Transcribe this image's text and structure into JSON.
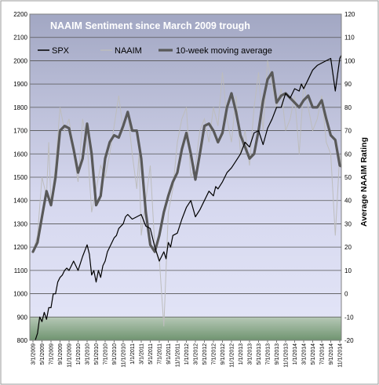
{
  "chart_data": {
    "type": "line",
    "title": "NAAIM Sentiment since March 2009 trough",
    "ylabel_left": "",
    "ylabel_right": "Average NAAIM Rating",
    "xlabel": "",
    "y_left_range": [
      800,
      2200
    ],
    "y_right_range": [
      -20,
      120
    ],
    "y_left_ticks": [
      "800",
      "900",
      "1000",
      "1100",
      "1200",
      "1300",
      "1400",
      "1500",
      "1600",
      "1700",
      "1800",
      "1900",
      "2000",
      "2100",
      "2200"
    ],
    "y_right_ticks": [
      "-20",
      "-10",
      "0",
      "10",
      "20",
      "30",
      "40",
      "50",
      "60",
      "70",
      "80",
      "90",
      "100",
      "110",
      "120"
    ],
    "x_tick_labels": [
      "3/1/2009",
      "5/1/2009",
      "7/1/2009",
      "9/1/2009",
      "11/1/2009",
      "1/1/2010",
      "3/1/2010",
      "5/1/2010",
      "7/1/2010",
      "9/1/2010",
      "11/1/2010",
      "1/1/2011",
      "3/1/2011",
      "5/1/2011",
      "7/1/2011",
      "9/1/2011",
      "11/1/2011",
      "1/1/2012",
      "3/1/2012",
      "5/1/2012",
      "7/1/2012",
      "9/1/2012",
      "11/1/2012",
      "1/1/2013",
      "3/1/2013",
      "5/1/2013",
      "7/1/2013",
      "9/1/2013",
      "11/1/2013",
      "1/1/2014",
      "3/1/2014",
      "5/1/2014",
      "7/1/2014",
      "9/1/2014",
      "11/1/2014"
    ],
    "legend": {
      "placement": "top",
      "entries": [
        "SPX",
        "NAAIM",
        "10-week moving average"
      ]
    },
    "colors": {
      "spx": "#000000",
      "naaim": "#bdbdbd",
      "moving_average": "#595959",
      "band_bottom": "#7fa07f"
    },
    "grid": true,
    "series": [
      {
        "name": "SPX",
        "axis": "left",
        "x_months": [
          0,
          0.5,
          1,
          1.5,
          2,
          2.5,
          3,
          3.5,
          4,
          4.5,
          5,
          5.5,
          6,
          6.5,
          7,
          7.5,
          8,
          9,
          10,
          11,
          12,
          12.5,
          13,
          13.5,
          14,
          14.5,
          15,
          15.5,
          16,
          16.5,
          17,
          18,
          18.5,
          19,
          20,
          20.5,
          21,
          22,
          23,
          24,
          25,
          26,
          27,
          28,
          29,
          29.5,
          30,
          30.5,
          31,
          32,
          33,
          34,
          35,
          36,
          37,
          38,
          39,
          40,
          40.5,
          41,
          42,
          43,
          44,
          45,
          46,
          47,
          48,
          49,
          50,
          51,
          52,
          53,
          54,
          55,
          56,
          57,
          58,
          59,
          59.5,
          60,
          61,
          62,
          63,
          64,
          65,
          66,
          67,
          68,
          69,
          70
        ],
        "values": [
          757,
          800,
          830,
          900,
          880,
          920,
          890,
          940,
          940,
          1000,
          1000,
          1050,
          1070,
          1080,
          1100,
          1110,
          1100,
          1140,
          1100,
          1160,
          1210,
          1170,
          1080,
          1100,
          1050,
          1100,
          1070,
          1120,
          1140,
          1180,
          1200,
          1240,
          1250,
          1280,
          1300,
          1330,
          1340,
          1320,
          1330,
          1340,
          1290,
          1280,
          1200,
          1140,
          1180,
          1150,
          1220,
          1200,
          1250,
          1260,
          1320,
          1370,
          1400,
          1330,
          1360,
          1400,
          1440,
          1420,
          1460,
          1450,
          1480,
          1520,
          1540,
          1570,
          1600,
          1650,
          1630,
          1690,
          1700,
          1640,
          1710,
          1750,
          1800,
          1800,
          1860,
          1840,
          1880,
          1870,
          1900,
          1880,
          1920,
          1960,
          1980,
          1990,
          2000,
          2010,
          1870,
          2010,
          2050,
          2070
        ]
      },
      {
        "name": "NAAIM",
        "axis": "right",
        "x_months": [
          0,
          1,
          2,
          3,
          3.5,
          4,
          5,
          6,
          7,
          8,
          9,
          10,
          11,
          12,
          13,
          14,
          15,
          16,
          17,
          18,
          19,
          20,
          21,
          22,
          23,
          23.5,
          24,
          25,
          26,
          27,
          28,
          29,
          30,
          31,
          32,
          33,
          34,
          35,
          36,
          37,
          38,
          39,
          40,
          41,
          42,
          43,
          44,
          45,
          46,
          47,
          48,
          49,
          50,
          51,
          52,
          53,
          54,
          55,
          56,
          57,
          58,
          59,
          60,
          61,
          62,
          63,
          64,
          65,
          66,
          67,
          68,
          69,
          70
        ],
        "values": [
          18,
          25,
          50,
          42,
          65,
          38,
          55,
          80,
          70,
          75,
          60,
          48,
          75,
          65,
          35,
          45,
          55,
          50,
          60,
          72,
          85,
          70,
          78,
          60,
          45,
          60,
          25,
          40,
          55,
          20,
          15,
          -14,
          35,
          45,
          65,
          75,
          80,
          50,
          55,
          70,
          75,
          65,
          80,
          72,
          95,
          75,
          65,
          85,
          60,
          70,
          55,
          80,
          95,
          70,
          100,
          90,
          80,
          88,
          70,
          75,
          85,
          60,
          90,
          80,
          70,
          75,
          85,
          65,
          60,
          25,
          60,
          45,
          62
        ]
      },
      {
        "name": "10-week moving average",
        "axis": "right",
        "x_months": [
          0,
          1,
          2,
          3,
          4,
          5,
          6,
          7,
          8,
          9,
          10,
          11,
          12,
          13,
          14,
          15,
          16,
          17,
          18,
          19,
          20,
          21,
          22,
          23,
          24,
          25,
          26,
          27,
          28,
          29,
          30,
          31,
          32,
          33,
          34,
          35,
          36,
          37,
          38,
          39,
          40,
          41,
          42,
          43,
          44,
          45,
          46,
          47,
          48,
          49,
          50,
          51,
          52,
          53,
          54,
          55,
          56,
          57,
          58,
          59,
          60,
          61,
          62,
          63,
          64,
          65,
          66,
          67,
          68,
          69,
          70
        ],
        "values": [
          18,
          22,
          33,
          44,
          38,
          50,
          70,
          72,
          71,
          62,
          52,
          58,
          73,
          60,
          38,
          42,
          58,
          65,
          68,
          67,
          72,
          78,
          70,
          70,
          58,
          35,
          21,
          18,
          25,
          35,
          42,
          48,
          52,
          62,
          69,
          60,
          49,
          60,
          72,
          73,
          70,
          65,
          69,
          80,
          86,
          78,
          68,
          63,
          58,
          60,
          70,
          83,
          92,
          95,
          82,
          85,
          86,
          84,
          82,
          80,
          83,
          85,
          80,
          80,
          83,
          75,
          68,
          66,
          55,
          54,
          56
        ]
      }
    ]
  }
}
